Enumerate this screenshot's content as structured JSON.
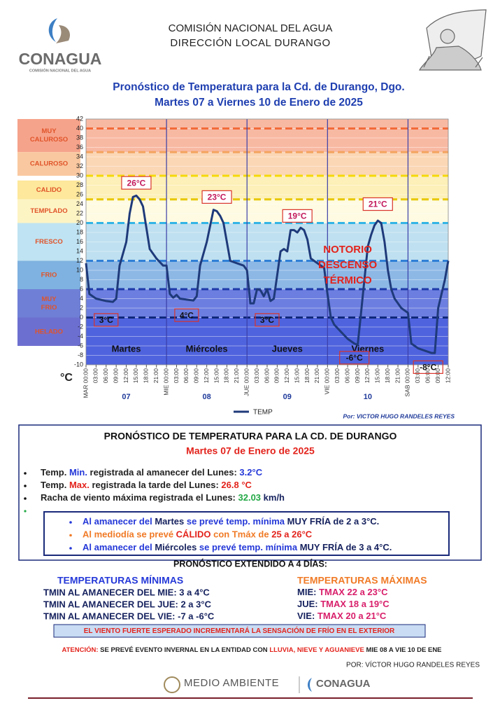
{
  "header": {
    "org": "COMISIÓN NACIONAL DEL AGUA",
    "office": "DIRECCIÓN LOCAL DURANGO",
    "logo": "CONAGUA",
    "logo_sub": "COMISIÓN NACIONAL DEL AGUA"
  },
  "chart_data": {
    "type": "line",
    "title": "Pronóstico  de Temperatura para  la Cd. de Durango, Dgo.",
    "subtitle": "Martes 07 a Viernes 10 de Enero de 2025",
    "ylabel": "°C",
    "x": [
      0,
      1,
      3,
      6,
      8,
      9,
      10,
      12,
      13,
      14,
      15,
      16,
      17,
      18,
      19,
      21,
      23,
      24,
      25,
      26,
      27,
      28,
      30,
      32,
      33,
      34,
      36,
      38,
      39,
      40,
      41,
      42,
      43,
      45,
      47,
      48,
      49,
      50,
      51,
      52,
      53,
      54,
      55,
      56,
      57,
      58,
      59,
      60,
      61,
      62,
      63,
      64,
      65,
      66,
      67,
      69,
      71,
      72,
      73,
      74,
      76,
      78,
      80,
      81,
      82,
      83,
      84,
      85,
      86,
      87,
      88,
      89,
      90,
      91,
      92,
      94,
      96,
      97,
      99,
      101,
      103,
      104,
      105,
      107,
      108
    ],
    "series": [
      {
        "name": "TEMP",
        "color": "#1f3a7a",
        "values": [
          11.5,
          5,
          4,
          3.5,
          3.3,
          4,
          11,
          16,
          22,
          25.5,
          25.8,
          25,
          23.5,
          19,
          14.5,
          12.5,
          11,
          11,
          5,
          4.2,
          4.8,
          4,
          3.8,
          3.6,
          4.5,
          11,
          16,
          22.8,
          22.5,
          21.5,
          20,
          16,
          12,
          11.5,
          11,
          10,
          3,
          3,
          6,
          5.8,
          4.5,
          6,
          3.5,
          4,
          9,
          14,
          14.5,
          14,
          18.5,
          18.5,
          18,
          19,
          18.5,
          16.5,
          12.5,
          11.5,
          10.5,
          5,
          0,
          -1.5,
          -3,
          -4.5,
          -5.5,
          -5.8,
          1,
          8,
          15,
          17.5,
          19.5,
          20.5,
          20,
          16,
          10,
          6,
          4,
          2,
          1,
          -5.5,
          -6.5,
          -7,
          -7.5,
          -7.5,
          2,
          8,
          12
        ]
      }
    ],
    "xlim": [
      0,
      108
    ],
    "xticks": [
      {
        "value": 0,
        "label": "MAR 00:00"
      },
      {
        "value": 3,
        "label": "03:00"
      },
      {
        "value": 6,
        "label": "06:00"
      },
      {
        "value": 9,
        "label": "09:00"
      },
      {
        "value": 12,
        "label": "12:00"
      },
      {
        "value": 15,
        "label": "15:00"
      },
      {
        "value": 18,
        "label": "18:00"
      },
      {
        "value": 21,
        "label": "21:00"
      },
      {
        "value": 24,
        "label": "MIE 00:00"
      },
      {
        "value": 27,
        "label": "03:00"
      },
      {
        "value": 30,
        "label": "06:00"
      },
      {
        "value": 33,
        "label": "09:00"
      },
      {
        "value": 36,
        "label": "12:00"
      },
      {
        "value": 39,
        "label": "15:00"
      },
      {
        "value": 42,
        "label": "18:00"
      },
      {
        "value": 45,
        "label": "21:00"
      },
      {
        "value": 48,
        "label": "JUE 00:00"
      },
      {
        "value": 51,
        "label": "03:00"
      },
      {
        "value": 54,
        "label": "06:00"
      },
      {
        "value": 57,
        "label": "09:00"
      },
      {
        "value": 60,
        "label": "12:00"
      },
      {
        "value": 63,
        "label": "15:00"
      },
      {
        "value": 66,
        "label": "18:00"
      },
      {
        "value": 69,
        "label": "21:00"
      },
      {
        "value": 72,
        "label": "VIE 00:00"
      },
      {
        "value": 75,
        "label": "03:00"
      },
      {
        "value": 78,
        "label": "06:00"
      },
      {
        "value": 81,
        "label": "09:00"
      },
      {
        "value": 84,
        "label": "12:00"
      },
      {
        "value": 87,
        "label": "15:00"
      },
      {
        "value": 90,
        "label": "18:00"
      },
      {
        "value": 93,
        "label": "21:00"
      },
      {
        "value": 96,
        "label": "SAB 00:00"
      },
      {
        "value": 99,
        "label": "03:00"
      },
      {
        "value": 102,
        "label": "06:00"
      },
      {
        "value": 105,
        "label": "09:00"
      },
      {
        "value": 108,
        "label": "12:00"
      }
    ],
    "ylim": [
      -10,
      42
    ],
    "yticks": [
      -10,
      -8,
      -6,
      -4,
      -2,
      0,
      2,
      4,
      6,
      8,
      10,
      12,
      14,
      16,
      18,
      20,
      22,
      24,
      26,
      28,
      30,
      32,
      34,
      36,
      38,
      40,
      42
    ],
    "grid": true,
    "day_separators": [
      24,
      48,
      72,
      96
    ],
    "days": [
      {
        "x": 12,
        "number": "07",
        "name": "Martes"
      },
      {
        "x": 36,
        "number": "08",
        "name": "Miércoles"
      },
      {
        "x": 60,
        "number": "09",
        "name": "Jueves"
      },
      {
        "x": 84,
        "number": "10",
        "name": "Viernes"
      }
    ],
    "bands": [
      {
        "from": 35,
        "to": 42,
        "color": "#f8b9a3"
      },
      {
        "from": 30,
        "to": 35,
        "color": "#fbd7b5"
      },
      {
        "from": 25,
        "to": 30,
        "color": "#fdf0b8"
      },
      {
        "from": 20,
        "to": 25,
        "color": "#fefbe2"
      },
      {
        "from": 12,
        "to": 20,
        "color": "#bfe0f0"
      },
      {
        "from": 6,
        "to": 12,
        "color": "#8db8e6"
      },
      {
        "from": 0,
        "to": 6,
        "color": "#6c7ee0"
      },
      {
        "from": -10,
        "to": 0,
        "color": "#4f63de"
      }
    ],
    "zones": [
      {
        "label": [
          "MUY",
          "CALUROSO"
        ],
        "from": 35,
        "to": 42,
        "color": "#f6a38b"
      },
      {
        "label": [
          "CALUROSO"
        ],
        "from": 30,
        "to": 35,
        "color": "#f9c8a0"
      },
      {
        "label": [
          "CALIDO"
        ],
        "from": 25,
        "to": 29,
        "color": "#fde89b"
      },
      {
        "label": [
          "TEMPLADO"
        ],
        "from": 20,
        "to": 25,
        "color": "#fdf4c4"
      },
      {
        "label": [
          "FRESCO"
        ],
        "from": 12,
        "to": 20,
        "color": "#bfe3f2"
      },
      {
        "label": [
          "FRIO"
        ],
        "from": 6,
        "to": 12,
        "color": "#7fb2e0"
      },
      {
        "label": [
          "MUY",
          "FRIO"
        ],
        "from": 0,
        "to": 6,
        "color": "#6f7fd6"
      },
      {
        "label": [
          "HELADO"
        ],
        "from": -6,
        "to": 0,
        "color": "#6d6fd0"
      }
    ],
    "thresholds": [
      {
        "value": 40,
        "color": "#f26b3a"
      },
      {
        "value": 35,
        "color": "#f4a460"
      },
      {
        "value": 30,
        "color": "#f5d90a"
      },
      {
        "value": 25,
        "color": "#e8c800"
      },
      {
        "value": 20,
        "color": "#33b5e5"
      },
      {
        "value": 12,
        "color": "#2f7fd6"
      },
      {
        "value": 6,
        "color": "#1e3aa8"
      },
      {
        "value": 0,
        "color": "#10287a"
      }
    ],
    "annotations": [
      {
        "text": "26°C",
        "x": 15,
        "y": 28.5,
        "kind": "max"
      },
      {
        "text": "23°C",
        "x": 39,
        "y": 25.5,
        "kind": "max"
      },
      {
        "text": "19°C",
        "x": 63,
        "y": 21.5,
        "kind": "max"
      },
      {
        "text": "21°C",
        "x": 87,
        "y": 24,
        "kind": "max"
      },
      {
        "text": "3°C",
        "x": 6,
        "y": -0.5,
        "kind": "min"
      },
      {
        "text": "4°C",
        "x": 30,
        "y": 0.5,
        "kind": "min"
      },
      {
        "text": "3°C",
        "x": 54,
        "y": -0.5,
        "kind": "min"
      },
      {
        "text": "-6°C",
        "x": 80,
        "y": -8.5,
        "kind": "min"
      },
      {
        "text": "-8°C",
        "x": 102,
        "y": -10.5,
        "kind": "min"
      }
    ],
    "note": {
      "lines": [
        "NOTORIO",
        "DESCENSO",
        "TÉRMICO"
      ],
      "x": 78,
      "y": 11,
      "color": "#e3231c"
    },
    "credit": "Por:  VICTOR HUGO RANDELES REYES"
  },
  "report": {
    "title": "PRONÓSTICO DE TEMPERATURA PARA LA CD. DE DURANGO",
    "date": "Martes 07 de Enero de 2025",
    "observed": [
      [
        {
          "text": "Temp. ",
          "style": "dark"
        },
        {
          "text": "Min.",
          "style": "blue"
        },
        {
          "text": " registrada al amanecer del Lunes: ",
          "style": "dark"
        },
        {
          "text": "3.2°C",
          "style": "blue"
        }
      ],
      [
        {
          "text": "Temp. ",
          "style": "dark"
        },
        {
          "text": "Max.",
          "style": "red"
        },
        {
          "text": " registrada la tarde del Lunes: ",
          "style": "dark"
        },
        {
          "text": "26.8 °C",
          "style": "red"
        }
      ],
      [
        {
          "text": "Racha de viento máxima registrada el Lunes:  ",
          "style": "dark"
        },
        {
          "text": "32.03",
          "style": "green"
        },
        {
          "text": "  km/h",
          "style": "navy"
        }
      ]
    ],
    "forecast": [
      {
        "bullet": "blue",
        "segments": [
          {
            "text": "Al amanecer del ",
            "style": "blue"
          },
          {
            "text": "Martes",
            "style": "navy"
          },
          {
            "text": " se prevé temp. mínima ",
            "style": "blue"
          },
          {
            "text": "MUY FRÍA",
            "style": "navy"
          },
          {
            "text": " de 2 a 3°C.",
            "style": "navy"
          }
        ]
      },
      {
        "bullet": "orange",
        "segments": [
          {
            "text": "Al mediodía se prevé ",
            "style": "orange"
          },
          {
            "text": "CÁLIDO",
            "style": "red"
          },
          {
            "text": " con Tmáx de ",
            "style": "orange"
          },
          {
            "text": "25 a 26°C",
            "style": "red"
          }
        ]
      },
      {
        "bullet": "blue",
        "segments": [
          {
            "text": "Al amanecer del ",
            "style": "blue"
          },
          {
            "text": "Miércoles",
            "style": "navy"
          },
          {
            "text": " se prevé temp. mínima ",
            "style": "blue"
          },
          {
            "text": "MUY FRÍA",
            "style": "navy"
          },
          {
            "text": " de 3 a 4°C.",
            "style": "navy"
          }
        ]
      }
    ],
    "extended_title": "PRONÓSTICO EXTENDIDO A 4 DÍAS:",
    "minimums": {
      "title": "TEMPERATURAS MÍNIMAS",
      "rows": [
        "TMIN AL AMANECER DEL MIE: 3 a 4°C",
        "TMIN AL AMANECER DEL JUE:  2 a 3°C",
        "TMIN AL AMANECER DEL VIE: -7 a -6°C"
      ]
    },
    "maximums": {
      "title": "TEMPERATURAS MÁXIMAS",
      "rows": [
        [
          {
            "text": "MIE: ",
            "style": "navy"
          },
          {
            "text": "TMAX 22 a 23°C",
            "style": "magenta"
          }
        ],
        [
          {
            "text": "JUE: ",
            "style": "navy"
          },
          {
            "text": "TMAX 18 a 19°C",
            "style": "magenta"
          }
        ],
        [
          {
            "text": "VIE: ",
            "style": "navy"
          },
          {
            "text": "TMAX 20 a 21°C",
            "style": "magenta"
          }
        ]
      ]
    },
    "wind_note": "EL VIENTO FUERTE ESPERADO INCREMENTARÁ LA SENSACIÓN DE FRÍO EN EL EXTERIOR",
    "attention": [
      {
        "text": "ATENCIÓN:",
        "style": "red"
      },
      {
        "text": " SE PREVÉ EVENTO INVERNAL EN LA ENTIDAD CON ",
        "style": "dark"
      },
      {
        "text": "LLUVIA, NIEVE Y AGUANIEVE",
        "style": "red"
      },
      {
        "text": " MIE 08 A VIE 10 DE ENE",
        "style": "dark"
      }
    ],
    "credit": "POR: VÍCTOR HUGO RANDELES REYES"
  },
  "footer": {
    "left": "MEDIO AMBIENTE",
    "right": "CONAGUA"
  }
}
